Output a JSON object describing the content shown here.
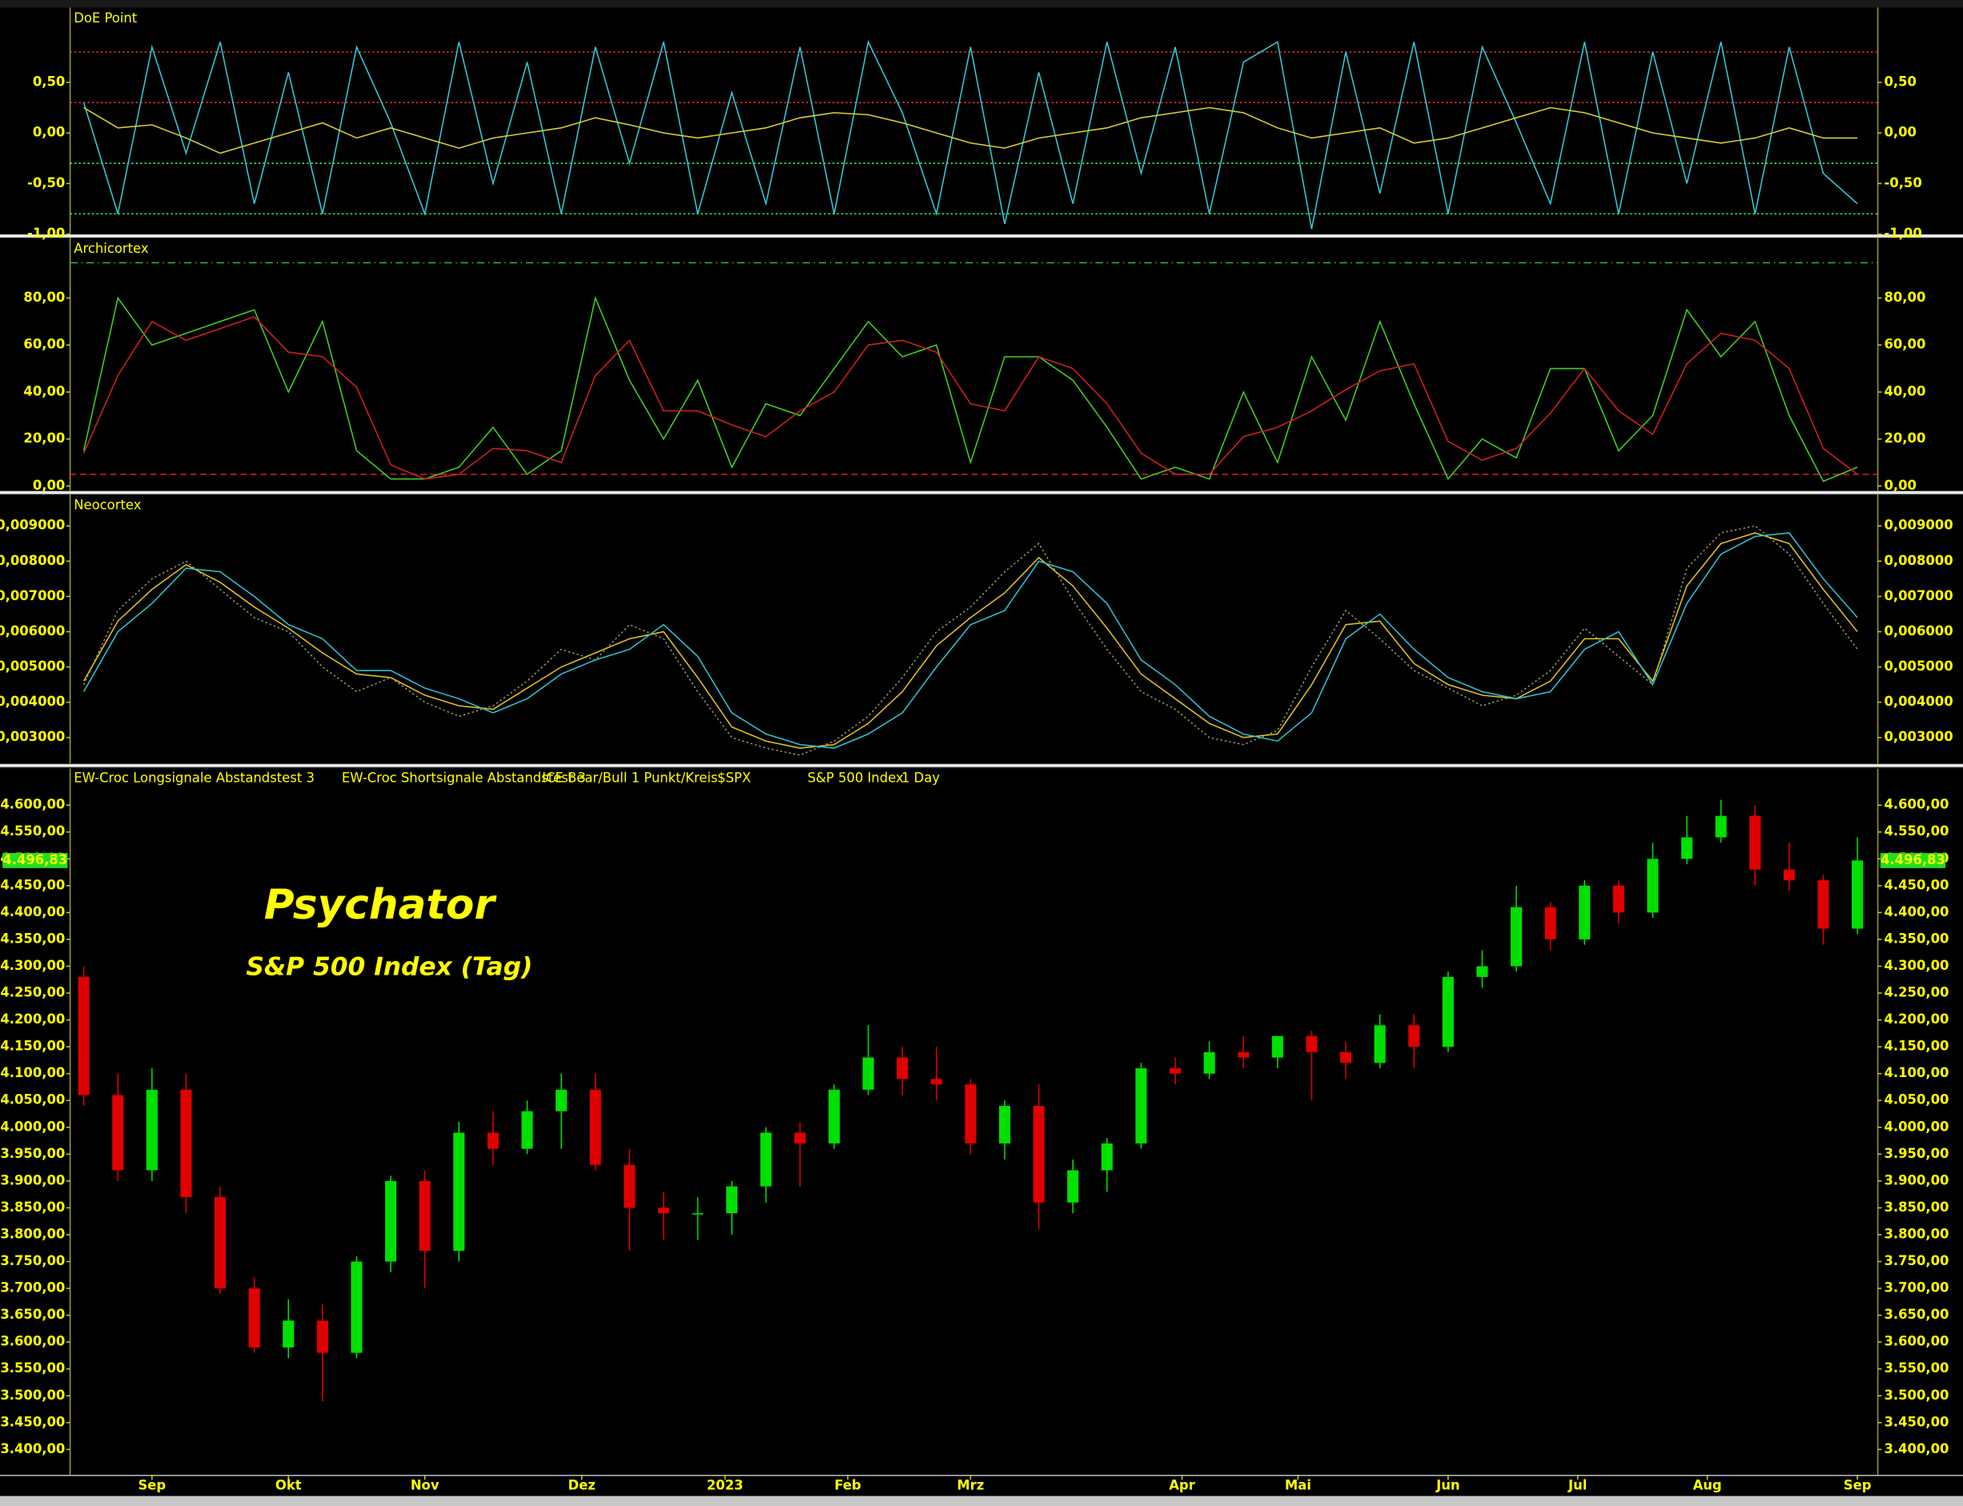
{
  "chart_data": [
    {
      "type": "line",
      "title": "DoE Point",
      "xlim": [
        0,
        265
      ],
      "ylim": [
        -1.0,
        1.24
      ],
      "yticks": [
        {
          "value": 0.5,
          "label": "0,50"
        },
        {
          "value": 0,
          "label": "0,00"
        },
        {
          "value": -0.5,
          "label": "-0,50"
        },
        {
          "value": -1.0,
          "label": "-1,00"
        }
      ],
      "ref_lines": [
        {
          "value": 0.8,
          "color": "#ff3030",
          "style": "dotted"
        },
        {
          "value": 0.3,
          "color": "#ff3030",
          "style": "dotted"
        },
        {
          "value": -0.3,
          "color": "#30ff60",
          "style": "dotted"
        },
        {
          "value": -0.8,
          "color": "#30ff60",
          "style": "dotted"
        }
      ],
      "x": [
        2,
        7,
        12,
        17,
        22,
        27,
        32,
        37,
        42,
        47,
        52,
        57,
        62,
        67,
        72,
        77,
        82,
        87,
        92,
        97,
        102,
        107,
        112,
        117,
        122,
        127,
        132,
        137,
        142,
        147,
        152,
        157,
        162,
        167,
        172,
        177,
        182,
        187,
        192,
        197,
        202,
        207,
        212,
        217,
        222,
        227,
        232,
        237,
        242,
        247,
        252,
        257,
        262
      ],
      "series": [
        {
          "color": "#33c8d8",
          "style": "solid",
          "values": [
            0.3,
            -0.8,
            0.85,
            -0.2,
            0.9,
            -0.7,
            0.6,
            -0.8,
            0.85,
            0.1,
            -0.8,
            0.9,
            -0.5,
            0.7,
            -0.8,
            0.85,
            -0.3,
            0.9,
            -0.8,
            0.4,
            -0.7,
            0.85,
            -0.8,
            0.9,
            0.2,
            -0.8,
            0.85,
            -0.9,
            0.6,
            -0.7,
            0.9,
            -0.4,
            0.85,
            -0.8,
            0.7,
            0.9,
            -0.95,
            0.8,
            -0.6,
            0.9,
            -0.8,
            0.85,
            0.1,
            -0.7,
            0.9,
            -0.8,
            0.8,
            -0.5,
            0.9,
            -0.8,
            0.85,
            -0.4,
            -0.7
          ]
        },
        {
          "color": "#d8d030",
          "style": "solid",
          "values": [
            0.25,
            0.05,
            0.08,
            -0.05,
            -0.2,
            -0.1,
            0.0,
            0.1,
            -0.05,
            0.05,
            -0.05,
            -0.15,
            -0.05,
            0.0,
            0.05,
            0.15,
            0.08,
            0.0,
            -0.05,
            0.0,
            0.05,
            0.15,
            0.2,
            0.18,
            0.1,
            0.0,
            -0.1,
            -0.15,
            -0.05,
            0.0,
            0.05,
            0.15,
            0.2,
            0.25,
            0.2,
            0.05,
            -0.05,
            0.0,
            0.05,
            -0.1,
            -0.05,
            0.05,
            0.15,
            0.25,
            0.2,
            0.1,
            0.0,
            -0.05,
            -0.1,
            -0.05,
            0.05,
            -0.05,
            -0.05
          ]
        }
      ]
    },
    {
      "type": "line",
      "title": "Archicortex",
      "xlim": [
        0,
        265
      ],
      "ylim": [
        -2,
        105.6
      ],
      "yticks": [
        {
          "value": 0,
          "label": "0,00"
        },
        {
          "value": 20,
          "label": "20,00"
        },
        {
          "value": 40,
          "label": "40,00"
        },
        {
          "value": 60,
          "label": "60,00"
        },
        {
          "value": 80,
          "label": "80,00"
        }
      ],
      "ref_lines": [
        {
          "value": 95,
          "color": "#20c040",
          "style": "dashdot"
        },
        {
          "value": 5,
          "color": "#d02020",
          "style": "dashed"
        }
      ],
      "x": [
        2,
        7,
        12,
        17,
        22,
        27,
        32,
        37,
        42,
        47,
        52,
        57,
        62,
        67,
        72,
        77,
        82,
        87,
        92,
        97,
        102,
        107,
        112,
        117,
        122,
        127,
        132,
        137,
        142,
        147,
        152,
        157,
        162,
        167,
        172,
        177,
        182,
        187,
        192,
        197,
        202,
        207,
        212,
        217,
        222,
        227,
        232,
        237,
        242,
        247,
        252,
        257,
        262
      ],
      "series": [
        {
          "color": "#40d020",
          "style": "solid",
          "values": [
            15,
            80,
            60,
            65,
            70,
            75,
            40,
            70,
            15,
            3,
            3,
            8,
            25,
            5,
            15,
            80,
            45,
            20,
            45,
            8,
            35,
            30,
            50,
            70,
            55,
            60,
            10,
            55,
            55,
            45,
            25,
            3,
            8,
            3,
            40,
            10,
            55,
            28,
            70,
            35,
            3,
            20,
            12,
            50,
            50,
            15,
            30,
            75,
            55,
            70,
            30,
            2,
            8
          ]
        },
        {
          "color": "#d02020",
          "style": "solid",
          "values": [
            14,
            47,
            70,
            62,
            67,
            72,
            57,
            55,
            42,
            9,
            3,
            5,
            16,
            15,
            10,
            47,
            62,
            32,
            32,
            26,
            21,
            32,
            40,
            60,
            62,
            57,
            35,
            32,
            55,
            50,
            35,
            14,
            5,
            5,
            21,
            25,
            32,
            41,
            49,
            52,
            19,
            11,
            16,
            31,
            50,
            32,
            22,
            52,
            65,
            62,
            50,
            16,
            5
          ]
        }
      ]
    },
    {
      "type": "line",
      "title": "Neocortex",
      "xlim": [
        0,
        265
      ],
      "ylim": [
        0.00226,
        0.00989
      ],
      "yticks": [
        {
          "value": 0.003,
          "label": "0,003000"
        },
        {
          "value": 0.004,
          "label": "0,004000"
        },
        {
          "value": 0.005,
          "label": "0,005000"
        },
        {
          "value": 0.006,
          "label": "0,006000"
        },
        {
          "value": 0.007,
          "label": "0,007000"
        },
        {
          "value": 0.008,
          "label": "0,008000"
        },
        {
          "value": 0.009,
          "label": "0,009000"
        }
      ],
      "x": [
        2,
        7,
        12,
        17,
        22,
        27,
        32,
        37,
        42,
        47,
        52,
        57,
        62,
        67,
        72,
        77,
        82,
        87,
        92,
        97,
        102,
        107,
        112,
        117,
        122,
        127,
        132,
        137,
        142,
        147,
        152,
        157,
        162,
        167,
        172,
        177,
        182,
        187,
        192,
        197,
        202,
        207,
        212,
        217,
        222,
        227,
        232,
        237,
        242,
        247,
        252,
        257,
        262
      ],
      "series": [
        {
          "color": "#9a9a60",
          "style": "dotted",
          "values": [
            0.0045,
            0.0066,
            0.0075,
            0.008,
            0.0072,
            0.0064,
            0.006,
            0.005,
            0.0043,
            0.0047,
            0.004,
            0.0036,
            0.0039,
            0.0046,
            0.0055,
            0.0052,
            0.0062,
            0.0058,
            0.0043,
            0.003,
            0.0027,
            0.0025,
            0.0029,
            0.0036,
            0.0047,
            0.006,
            0.0067,
            0.0077,
            0.0085,
            0.0069,
            0.0055,
            0.0043,
            0.0038,
            0.003,
            0.0028,
            0.0032,
            0.005,
            0.0066,
            0.0058,
            0.0049,
            0.0044,
            0.0039,
            0.0042,
            0.0049,
            0.0061,
            0.0053,
            0.0045,
            0.0078,
            0.0088,
            0.009,
            0.0082,
            0.0068,
            0.0055
          ]
        },
        {
          "color": "#e0c020",
          "style": "solid",
          "values": [
            0.0046,
            0.0063,
            0.0072,
            0.0079,
            0.0074,
            0.0067,
            0.0061,
            0.0054,
            0.0048,
            0.0047,
            0.0042,
            0.0039,
            0.0038,
            0.0044,
            0.005,
            0.0054,
            0.0058,
            0.006,
            0.0047,
            0.0033,
            0.0029,
            0.0027,
            0.0028,
            0.0034,
            0.0043,
            0.0056,
            0.0064,
            0.0071,
            0.0081,
            0.0073,
            0.0061,
            0.0048,
            0.0041,
            0.0034,
            0.003,
            0.0031,
            0.0045,
            0.0062,
            0.0063,
            0.0051,
            0.0045,
            0.0042,
            0.0041,
            0.0046,
            0.0058,
            0.0058,
            0.0046,
            0.0073,
            0.0085,
            0.0088,
            0.0085,
            0.0072,
            0.006
          ]
        },
        {
          "color": "#30c0d0",
          "style": "solid",
          "values": [
            0.0043,
            0.006,
            0.0068,
            0.0078,
            0.0077,
            0.007,
            0.0062,
            0.0058,
            0.0049,
            0.0049,
            0.0044,
            0.0041,
            0.0037,
            0.0041,
            0.0048,
            0.0052,
            0.0055,
            0.0062,
            0.0053,
            0.0037,
            0.0031,
            0.0028,
            0.0027,
            0.0031,
            0.0037,
            0.005,
            0.0062,
            0.0066,
            0.008,
            0.0077,
            0.0068,
            0.0052,
            0.0045,
            0.0036,
            0.0031,
            0.0029,
            0.0037,
            0.0058,
            0.0065,
            0.0055,
            0.0047,
            0.0043,
            0.0041,
            0.0043,
            0.0055,
            0.006,
            0.0045,
            0.0068,
            0.0082,
            0.0087,
            0.0088,
            0.0075,
            0.0064
          ]
        }
      ]
    },
    {
      "type": "candlestick",
      "title": "Psychator",
      "subtitle": "S&P 500 Index (Tag)",
      "indicators": [
        "EW-Croc Longsignale Abstandstest 3",
        "EW-Croc Shortsignale Abstandstest 3",
        "ICE Bear/Bull 1 Punkt/Kreis"
      ],
      "symbol": "$SPX",
      "name": "S&P 500 Index",
      "interval": "1 Day",
      "last_price": {
        "value": 4496.83,
        "label": "4.496,83"
      },
      "up_color": "#00e000",
      "down_color": "#e00000",
      "xlim": [
        0,
        265
      ],
      "ylim": [
        3353,
        4668
      ],
      "xticks": [
        {
          "value": 12,
          "label": "Sep"
        },
        {
          "value": 32,
          "label": "Okt"
        },
        {
          "value": 52,
          "label": "Nov"
        },
        {
          "value": 75,
          "label": "Dez"
        },
        {
          "value": 96,
          "label": "2023"
        },
        {
          "value": 114,
          "label": "Feb"
        },
        {
          "value": 132,
          "label": "Mrz"
        },
        {
          "value": 163,
          "label": "Apr"
        },
        {
          "value": 180,
          "label": "Mai"
        },
        {
          "value": 202,
          "label": "Jun"
        },
        {
          "value": 221,
          "label": "Jul"
        },
        {
          "value": 240,
          "label": "Aug"
        },
        {
          "value": 262,
          "label": "Sep"
        }
      ],
      "yticks": [
        {
          "value": 3400,
          "label": "3.400,00"
        },
        {
          "value": 3450,
          "label": "3.450,00"
        },
        {
          "value": 3500,
          "label": "3.500,00"
        },
        {
          "value": 3550,
          "label": "3.550,00"
        },
        {
          "value": 3600,
          "label": "3.600,00"
        },
        {
          "value": 3650,
          "label": "3.650,00"
        },
        {
          "value": 3700,
          "label": "3.700,00"
        },
        {
          "value": 3750,
          "label": "3.750,00"
        },
        {
          "value": 3800,
          "label": "3.800,00"
        },
        {
          "value": 3850,
          "label": "3.850,00"
        },
        {
          "value": 3900,
          "label": "3.900,00"
        },
        {
          "value": 3950,
          "label": "3.950,00"
        },
        {
          "value": 4000,
          "label": "4.000,00"
        },
        {
          "value": 4050,
          "label": "4.050,00"
        },
        {
          "value": 4100,
          "label": "4.100,00"
        },
        {
          "value": 4150,
          "label": "4.150,00"
        },
        {
          "value": 4200,
          "label": "4.200,00"
        },
        {
          "value": 4250,
          "label": "4.250,00"
        },
        {
          "value": 4300,
          "label": "4.300,00"
        },
        {
          "value": 4350,
          "label": "4.350,00"
        },
        {
          "value": 4400,
          "label": "4.400,00"
        },
        {
          "value": 4450,
          "label": "4.450,00"
        },
        {
          "value": 4500,
          "label": "4.500,00"
        },
        {
          "value": 4550,
          "label": "4.550,00"
        },
        {
          "value": 4600,
          "label": "4.600,00"
        }
      ],
      "x": [
        2,
        7,
        12,
        17,
        22,
        27,
        32,
        37,
        42,
        47,
        52,
        57,
        62,
        67,
        72,
        77,
        82,
        87,
        92,
        97,
        102,
        107,
        112,
        117,
        122,
        127,
        132,
        137,
        142,
        147,
        152,
        157,
        162,
        167,
        172,
        177,
        182,
        187,
        192,
        197,
        202,
        207,
        212,
        217,
        222,
        227,
        232,
        237,
        242,
        247,
        252,
        257,
        262
      ],
      "open": [
        4280,
        4060,
        3920,
        4070,
        3870,
        3700,
        3590,
        3640,
        3580,
        3750,
        3900,
        3770,
        3990,
        3960,
        4030,
        4070,
        3930,
        3850,
        3840,
        3840,
        3890,
        3990,
        3970,
        4070,
        4130,
        4090,
        4080,
        3970,
        4040,
        3860,
        3920,
        3970,
        4110,
        4100,
        4140,
        4130,
        4170,
        4140,
        4120,
        4190,
        4150,
        4280,
        4300,
        4410,
        4350,
        4450,
        4400,
        4500,
        4540,
        4580,
        4480,
        4460,
        4370
      ],
      "high": [
        4300,
        4100,
        4110,
        4100,
        3890,
        3720,
        3680,
        3670,
        3760,
        3910,
        3920,
        4010,
        4030,
        4050,
        4100,
        4100,
        3960,
        3880,
        3870,
        3900,
        4000,
        4010,
        4080,
        4190,
        4150,
        4150,
        4090,
        4050,
        4080,
        3940,
        3980,
        4120,
        4130,
        4160,
        4170,
        4170,
        4180,
        4160,
        4210,
        4210,
        4290,
        4330,
        4450,
        4420,
        4460,
        4460,
        4530,
        4580,
        4610,
        4600,
        4530,
        4470,
        4540
      ],
      "low": [
        4040,
        3900,
        3900,
        3840,
        3690,
        3580,
        3570,
        3490,
        3570,
        3730,
        3700,
        3750,
        3930,
        3950,
        3960,
        3920,
        3770,
        3790,
        3790,
        3800,
        3860,
        3890,
        3960,
        4060,
        4060,
        4050,
        3950,
        3940,
        3810,
        3840,
        3880,
        3960,
        4080,
        4090,
        4110,
        4110,
        4050,
        4090,
        4110,
        4110,
        4140,
        4260,
        4290,
        4330,
        4340,
        4380,
        4390,
        4490,
        4530,
        4450,
        4440,
        4340,
        4360
      ],
      "close": [
        4060,
        3920,
        4070,
        3870,
        3700,
        3590,
        3640,
        3580,
        3750,
        3900,
        3770,
        3990,
        3960,
        4030,
        4070,
        3930,
        3850,
        3840,
        3840,
        3890,
        3990,
        3970,
        4070,
        4130,
        4090,
        4080,
        3970,
        4040,
        3860,
        3920,
        3970,
        4110,
        4100,
        4140,
        4130,
        4170,
        4140,
        4120,
        4190,
        4150,
        4280,
        4300,
        4410,
        4350,
        4450,
        4400,
        4500,
        4540,
        4580,
        4480,
        4460,
        4370,
        4497
      ]
    }
  ]
}
